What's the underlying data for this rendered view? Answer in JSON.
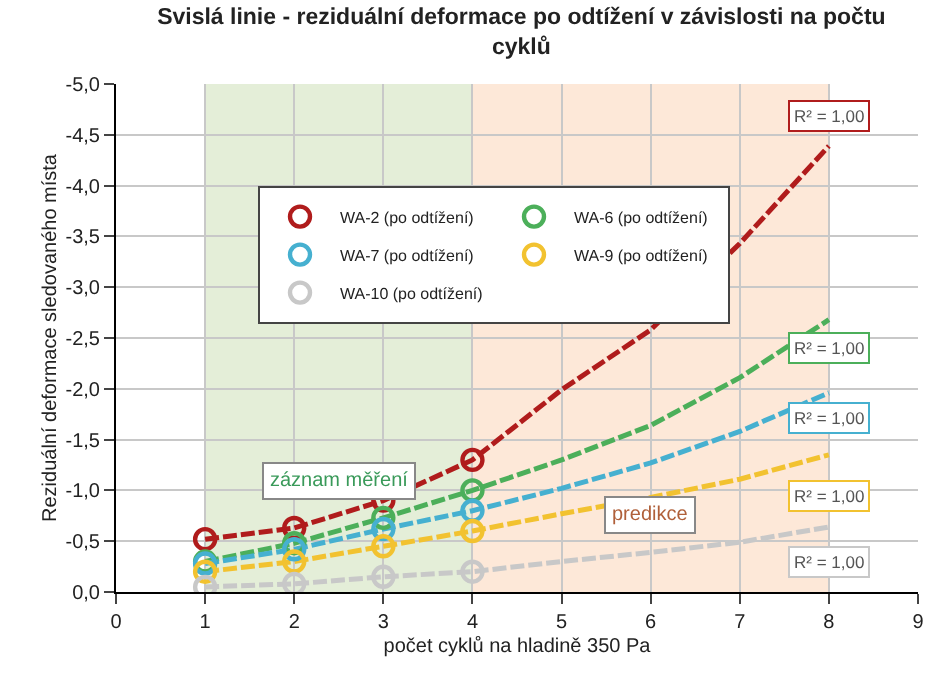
{
  "chart_data": {
    "type": "line",
    "title": "Svislá linie - reziduální deformace po odtížení v závislosti na počtu cyklů",
    "xlabel": "počet cyklů na hladině 350 Pa",
    "ylabel": "Reziduální deformace sledovaného místa",
    "xlim": [
      0,
      9
    ],
    "xticks": [
      0,
      1,
      2,
      3,
      4,
      5,
      6,
      7,
      8,
      9
    ],
    "ylim": [
      0,
      -5
    ],
    "yticks": [
      {
        "value": 0,
        "label": "0,0"
      },
      {
        "value": -0.5,
        "label": "-0,5"
      },
      {
        "value": -1,
        "label": "-1,0"
      },
      {
        "value": -1.5,
        "label": "-1,5"
      },
      {
        "value": -2,
        "label": "-2,0"
      },
      {
        "value": -2.5,
        "label": "-2,5"
      },
      {
        "value": -3,
        "label": "-3,0"
      },
      {
        "value": -3.5,
        "label": "-3,5"
      },
      {
        "value": -4,
        "label": "-4,0"
      },
      {
        "value": -4.5,
        "label": "-4,5"
      },
      {
        "value": -5,
        "label": "-5,0"
      }
    ],
    "grid": true,
    "legend": "top left",
    "bands": [
      {
        "axis": "x",
        "from": 1,
        "to": 4,
        "label": "záznam měření",
        "color": "#e4eed8"
      },
      {
        "axis": "x",
        "from": 4,
        "to": 8,
        "label": "predikce",
        "color": "#fde8d8"
      }
    ],
    "annotations": [
      "R² = 1,00",
      "R² = 1,00",
      "R² = 1,00",
      "R² = 1,00",
      "R² = 1,00"
    ],
    "series": [
      {
        "name": "WA-2 (po odtížení)",
        "type": "scatter",
        "marker": "circle",
        "color": "#b01c1c",
        "x": [
          1,
          2,
          3,
          4
        ],
        "values": [
          -0.52,
          -0.63,
          -0.9,
          -1.3
        ]
      },
      {
        "name": "WA-6 (po odtížení)",
        "type": "scatter",
        "marker": "circle",
        "color": "#4caf5a",
        "x": [
          1,
          2,
          3,
          4
        ],
        "values": [
          -0.3,
          -0.48,
          -0.73,
          -1.0
        ]
      },
      {
        "name": "WA-7 (po odtížení)",
        "type": "scatter",
        "marker": "circle",
        "color": "#46b0d0",
        "x": [
          1,
          2,
          3,
          4
        ],
        "values": [
          -0.28,
          -0.42,
          -0.62,
          -0.8
        ]
      },
      {
        "name": "WA-9 (po odtížení)",
        "type": "scatter",
        "marker": "circle",
        "color": "#f2c230",
        "x": [
          1,
          2,
          3,
          4
        ],
        "values": [
          -0.2,
          -0.3,
          -0.45,
          -0.6
        ]
      },
      {
        "name": "WA-10 (po odtížení)",
        "type": "scatter",
        "marker": "circle",
        "color": "#c8c8c8",
        "x": [
          1,
          2,
          3,
          4
        ],
        "values": [
          -0.05,
          -0.08,
          -0.15,
          -0.2
        ]
      },
      {
        "type": "line",
        "line_style": "dashed",
        "color": "#b01c1c",
        "x": [
          1,
          2,
          3,
          4,
          5,
          6,
          7,
          8
        ],
        "values": [
          -0.52,
          -0.63,
          -0.9,
          -1.3,
          -1.99,
          -2.58,
          -3.43,
          -4.39
        ]
      },
      {
        "type": "line",
        "line_style": "dashed",
        "color": "#4caf5a",
        "x": [
          1,
          2,
          3,
          4,
          5,
          6,
          7,
          8
        ],
        "values": [
          -0.3,
          -0.48,
          -0.73,
          -1.0,
          -1.3,
          -1.64,
          -2.11,
          -2.68
        ]
      },
      {
        "type": "line",
        "line_style": "dashed",
        "color": "#46b0d0",
        "x": [
          1,
          2,
          3,
          4,
          5,
          6,
          7,
          8
        ],
        "values": [
          -0.28,
          -0.42,
          -0.62,
          -0.8,
          -1.02,
          -1.27,
          -1.58,
          -1.96
        ]
      },
      {
        "type": "line",
        "line_style": "dashed",
        "color": "#f2c230",
        "x": [
          1,
          2,
          3,
          4,
          5,
          6,
          7,
          8
        ],
        "values": [
          -0.2,
          -0.3,
          -0.45,
          -0.6,
          -0.77,
          -0.93,
          -1.11,
          -1.35
        ]
      },
      {
        "type": "line",
        "line_style": "dashed",
        "color": "#c8c8c8",
        "x": [
          1,
          2,
          3,
          4,
          5,
          6,
          7,
          8
        ],
        "values": [
          -0.05,
          -0.08,
          -0.15,
          -0.2,
          -0.3,
          -0.39,
          -0.49,
          -0.64
        ]
      }
    ]
  }
}
